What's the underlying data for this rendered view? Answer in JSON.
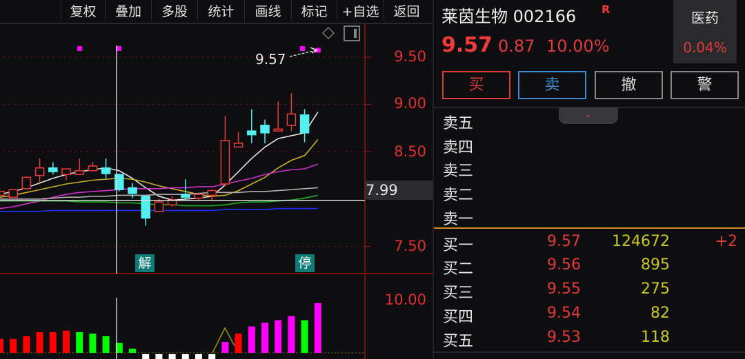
{
  "toolbar": {
    "items": [
      "复权",
      "叠加",
      "多股",
      "统计",
      "画线",
      "标记",
      "+自选",
      "返回"
    ]
  },
  "chart": {
    "y_ticks": [
      "9.50",
      "9.00",
      "8.50",
      "7.50"
    ],
    "y_tick_values": [
      9.5,
      9.0,
      8.5,
      7.5
    ],
    "crosshair_price": "7.99",
    "annotation": "9.57",
    "markers": [
      "解",
      "停"
    ],
    "volume_tick": "10.00",
    "colors": {
      "up": "#f03a3a",
      "down": "#52f0f0",
      "ma5": "#e6e6e6",
      "ma10": "#c8b020",
      "ma20": "#d030d0",
      "ma30": "#b0b0b0",
      "ma60": "#20b020",
      "ma120": "#2030ff",
      "limit": "#ff00ff"
    }
  },
  "chart_data": {
    "type": "candlestick",
    "ohlc": [
      [
        8.04,
        8.08,
        8.03,
        8.08
      ],
      [
        8.02,
        8.1,
        8.02,
        8.1
      ],
      [
        8.11,
        8.24,
        8.11,
        8.23
      ],
      [
        8.25,
        8.43,
        8.18,
        8.33
      ],
      [
        8.33,
        8.39,
        8.26,
        8.29
      ],
      [
        8.26,
        8.32,
        8.2,
        8.32
      ],
      [
        8.26,
        8.43,
        8.26,
        8.3
      ],
      [
        8.3,
        8.39,
        8.3,
        8.35
      ],
      [
        8.33,
        8.43,
        8.22,
        8.27
      ],
      [
        8.26,
        8.27,
        8.08,
        8.1
      ],
      [
        8.12,
        8.17,
        8.01,
        8.06
      ],
      [
        8.03,
        8.03,
        7.72,
        7.8
      ],
      [
        7.87,
        8.0,
        7.87,
        7.97
      ],
      [
        7.94,
        8.03,
        7.92,
        7.99
      ],
      [
        8.05,
        8.21,
        8.0,
        8.02
      ],
      [
        8.01,
        8.07,
        7.99,
        8.05
      ],
      [
        8.04,
        8.1,
        7.98,
        8.09
      ],
      [
        8.16,
        8.88,
        8.14,
        8.62
      ],
      [
        8.55,
        8.71,
        8.55,
        8.59
      ],
      [
        8.72,
        8.95,
        8.59,
        8.68
      ],
      [
        8.78,
        8.84,
        8.59,
        8.7
      ],
      [
        8.72,
        9.03,
        8.72,
        8.74
      ],
      [
        8.78,
        9.12,
        8.72,
        8.9
      ],
      [
        8.89,
        8.95,
        8.6,
        8.7
      ],
      [
        9.57,
        9.57,
        9.57,
        9.57
      ]
    ],
    "ma": [
      {
        "key": "ma5",
        "values": [
          8.05,
          8.08,
          8.12,
          8.17,
          8.22,
          8.26,
          8.29,
          8.31,
          8.33,
          8.3,
          8.22,
          8.12,
          8.03,
          7.99,
          8.0,
          8.01,
          8.03,
          8.15,
          8.29,
          8.43,
          8.55,
          8.64,
          8.67,
          8.7,
          8.92
        ]
      },
      {
        "key": "ma10",
        "values": [
          8.02,
          8.04,
          8.07,
          8.1,
          8.13,
          8.16,
          8.18,
          8.2,
          8.21,
          8.22,
          8.21,
          8.18,
          8.14,
          8.11,
          8.08,
          8.05,
          8.03,
          8.04,
          8.09,
          8.16,
          8.23,
          8.33,
          8.41,
          8.46,
          8.63
        ]
      },
      {
        "key": "ma20",
        "values": [
          7.9,
          7.92,
          7.95,
          7.98,
          8.02,
          8.05,
          8.07,
          8.08,
          8.09,
          8.1,
          8.11,
          8.11,
          8.11,
          8.12,
          8.12,
          8.13,
          8.13,
          8.16,
          8.19,
          8.22,
          8.26,
          8.29,
          8.31,
          8.32,
          8.37
        ]
      },
      {
        "key": "ma30",
        "values": [
          8.0,
          8.0,
          8.0,
          8.0,
          8.01,
          8.02,
          8.02,
          8.03,
          8.03,
          8.04,
          8.04,
          8.04,
          8.05,
          8.05,
          8.05,
          8.06,
          8.07,
          8.07,
          8.07,
          8.08,
          8.08,
          8.09,
          8.1,
          8.11,
          8.12
        ]
      },
      {
        "key": "ma60",
        "values": [
          7.98,
          7.98,
          7.98,
          7.98,
          7.98,
          7.98,
          7.97,
          7.97,
          7.97,
          7.96,
          7.96,
          7.95,
          7.94,
          7.94,
          7.93,
          7.93,
          7.93,
          7.94,
          7.96,
          7.97,
          7.97,
          7.98,
          7.99,
          8.01,
          8.04
        ]
      },
      {
        "key": "ma120",
        "values": [
          7.87,
          7.87,
          7.87,
          7.87,
          7.88,
          7.88,
          7.88,
          7.88,
          7.88,
          7.88,
          7.88,
          7.88,
          7.88,
          7.88,
          7.88,
          7.88,
          7.88,
          7.89,
          7.89,
          7.89,
          7.89,
          7.9,
          7.9,
          7.9,
          7.9
        ]
      }
    ],
    "volume": {
      "values": [
        2.7,
        2.7,
        3.2,
        4.0,
        4.0,
        4.3,
        4.0,
        3.7,
        3.2,
        1.9,
        0.8,
        -0.4,
        -0.4,
        -0.4,
        -0.4,
        -0.4,
        -0.2,
        2.1,
        3.7,
        5.1,
        5.8,
        6.3,
        7.1,
        6.3,
        9.6
      ],
      "colors": [
        "#ff0000",
        "#ff0000",
        "#ff0000",
        "#ff0000",
        "#ff0000",
        "#ff0000",
        "#00ff00",
        "#00ff00",
        "#00ff00",
        "#00ff00",
        "#00ff00",
        "#ffffff",
        "#ffffff",
        "#ffffff",
        "#ffffff",
        "#ffffff",
        "#ffffff",
        "#ff00ff",
        "#ff0000",
        "#ff00ff",
        "#ff00ff",
        "#ff00ff",
        "#ff00ff",
        "#00ff00",
        "#ff00ff"
      ],
      "ylim": [
        0,
        10
      ]
    },
    "ylim": [
      7.3,
      9.9
    ]
  },
  "quote": {
    "name": "莱茵生物",
    "code": "002166",
    "badge": "R",
    "price": "9.57",
    "change": "0.87",
    "change_pct": "10.00%",
    "sector": "医药",
    "sector_change": "0.04%",
    "buttons": {
      "buy": "买",
      "sell": "卖",
      "cancel": "撤",
      "alert": "警"
    },
    "expand_icon": "double-chevron-down-icon",
    "asks": [
      {
        "label": "卖五"
      },
      {
        "label": "卖四"
      },
      {
        "label": "卖三"
      },
      {
        "label": "卖二"
      },
      {
        "label": "卖一"
      }
    ],
    "bids": [
      {
        "label": "买一",
        "price": "9.57",
        "volume": "124672",
        "delta": "+2"
      },
      {
        "label": "买二",
        "price": "9.56",
        "volume": "895",
        "delta": ""
      },
      {
        "label": "买三",
        "price": "9.55",
        "volume": "275",
        "delta": ""
      },
      {
        "label": "买四",
        "price": "9.54",
        "volume": "82",
        "delta": ""
      },
      {
        "label": "买五",
        "price": "9.53",
        "volume": "118",
        "delta": ""
      }
    ]
  }
}
